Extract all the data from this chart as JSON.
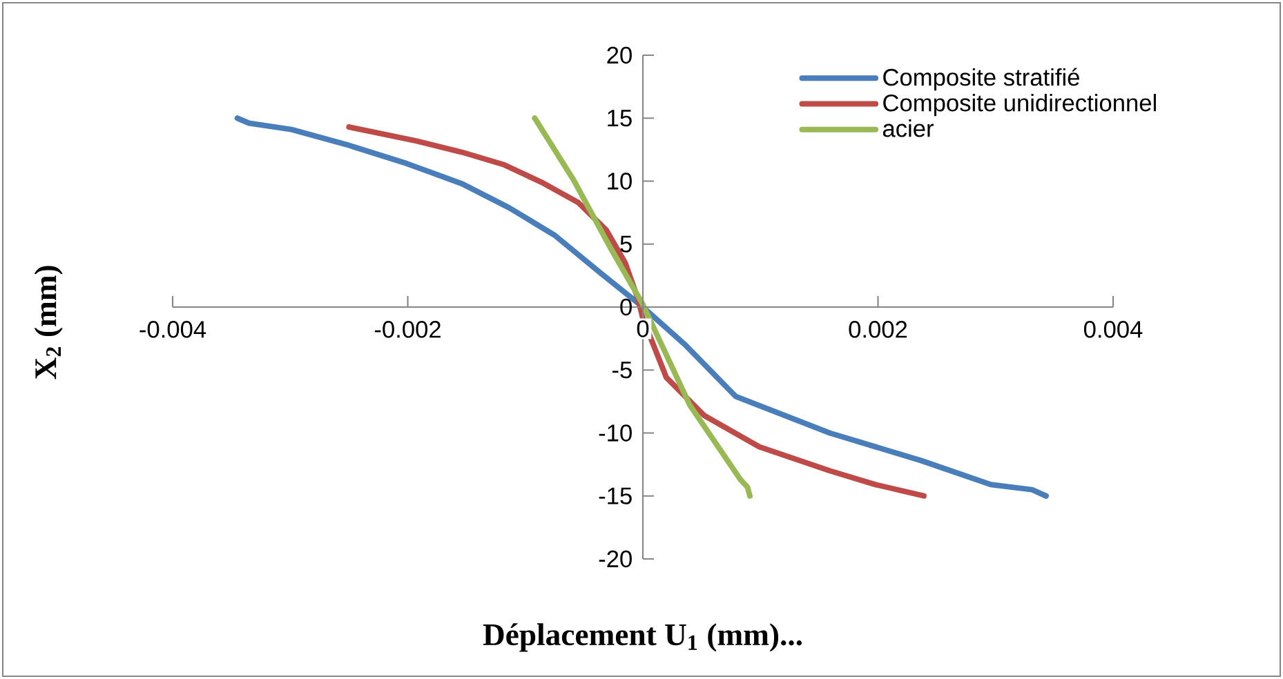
{
  "chart_data": {
    "type": "line",
    "xlabel": "Déplacement U$_{1}$ (mm)...",
    "ylabel": "X$_{2}$ (mm)",
    "xlim": [
      -0.004,
      0.004
    ],
    "ylim": [
      -20,
      20
    ],
    "xticks": [
      -0.004,
      -0.002,
      0,
      0.002,
      0.004
    ],
    "yticks": [
      -20,
      -15,
      -10,
      -5,
      0,
      5,
      10,
      15,
      20
    ],
    "legend": "top right",
    "marker": "none",
    "line_style": "solid",
    "series": [
      {
        "name": "Composite stratifié",
        "color": "#4a7ebb",
        "x": [
          -0.00345,
          -0.00335,
          -0.00299,
          -0.00252,
          -0.00201,
          -0.00154,
          -0.00114,
          -0.00075,
          -0.00036,
          0,
          0.00036,
          0.00079,
          0.00159,
          0.00237,
          0.00296,
          0.00331,
          0.00343
        ],
        "values": [
          15,
          14.6,
          14.1,
          12.9,
          11.4,
          9.8,
          7.9,
          5.7,
          2.7,
          0,
          -3,
          -7.1,
          -10,
          -12.2,
          -14.1,
          -14.5,
          -15
        ]
      },
      {
        "name": "Composite unidirectionnel",
        "color": "#be4b48",
        "x": [
          -0.0025,
          -0.00193,
          -0.00154,
          -0.00118,
          -0.00086,
          -0.00055,
          -0.00031,
          -0.00015,
          -4e-05,
          0,
          0.0002,
          0.00052,
          0.00099,
          0.00159,
          0.00198,
          0.00239
        ],
        "values": [
          14.3,
          13.2,
          12.3,
          11.3,
          9.9,
          8.3,
          6.1,
          3.5,
          0.6,
          -0.9,
          -5.6,
          -8.6,
          -11.1,
          -13,
          -14.1,
          -15
        ]
      },
      {
        "name": "acier",
        "color": "#98b954",
        "x": [
          -0.00092,
          -0.00059,
          -0.00027,
          0,
          0.0004,
          0.00083,
          0.00089,
          0.00091
        ],
        "values": [
          15,
          10.1,
          4.6,
          0.2,
          -7.8,
          -13.7,
          -14.3,
          -15
        ]
      }
    ]
  }
}
